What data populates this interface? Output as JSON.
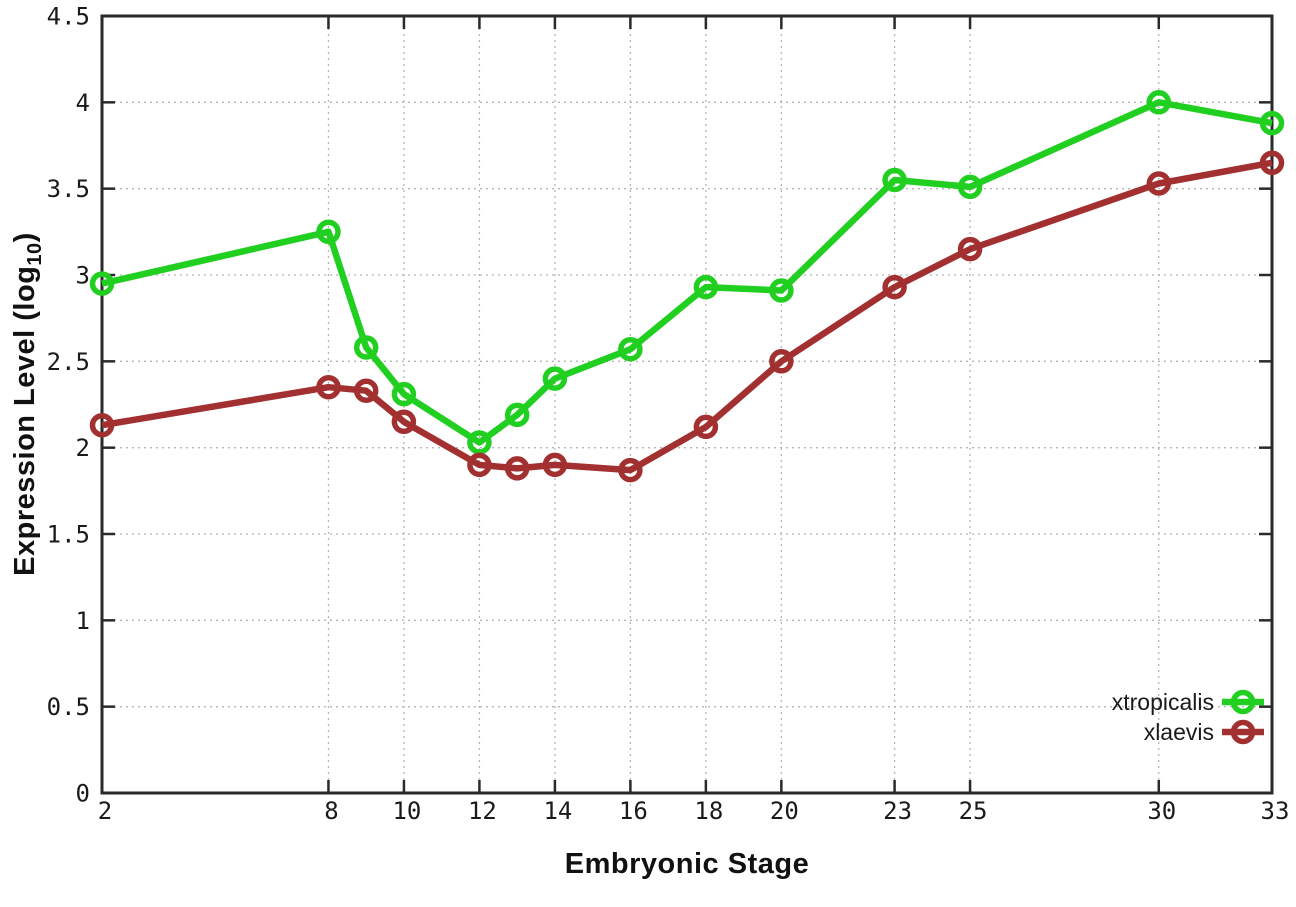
{
  "page": {
    "background": "#ffffff"
  },
  "labels": {
    "xlabel": "Embryonic Stage",
    "ylabel_main": "Expression Level (log",
    "ylabel_sub": "10",
    "ylabel_close": ")"
  },
  "chart_data": {
    "type": "line",
    "title": "",
    "xlabel": "Embryonic Stage",
    "ylabel": "Expression Level (log10)",
    "xlim": [
      2,
      33
    ],
    "ylim": [
      0,
      4.5
    ],
    "x_ticks": [
      2,
      8,
      10,
      12,
      14,
      16,
      18,
      20,
      23,
      25,
      30,
      33
    ],
    "y_ticks": [
      0,
      0.5,
      1,
      1.5,
      2,
      2.5,
      3,
      3.5,
      4,
      4.5
    ],
    "grid": true,
    "legend_position": "bottom-right",
    "axis_color": "#2a2a2a",
    "grid_color": "#b5b5b5",
    "text_color": "#1a1a1a",
    "x": [
      2,
      8,
      9,
      10,
      12,
      13,
      14,
      16,
      18,
      20,
      23,
      25,
      30,
      33
    ],
    "series": [
      {
        "name": "xtropicalis",
        "color": "#21cf21",
        "values": [
          2.95,
          3.25,
          2.58,
          2.31,
          2.03,
          2.19,
          2.4,
          2.57,
          2.93,
          2.91,
          3.55,
          3.51,
          4.0,
          3.88
        ]
      },
      {
        "name": "xlaevis",
        "color": "#a33030",
        "values": [
          2.13,
          2.35,
          2.33,
          2.15,
          1.9,
          1.88,
          1.9,
          1.87,
          2.12,
          2.5,
          2.93,
          3.15,
          3.53,
          3.65
        ]
      }
    ]
  }
}
